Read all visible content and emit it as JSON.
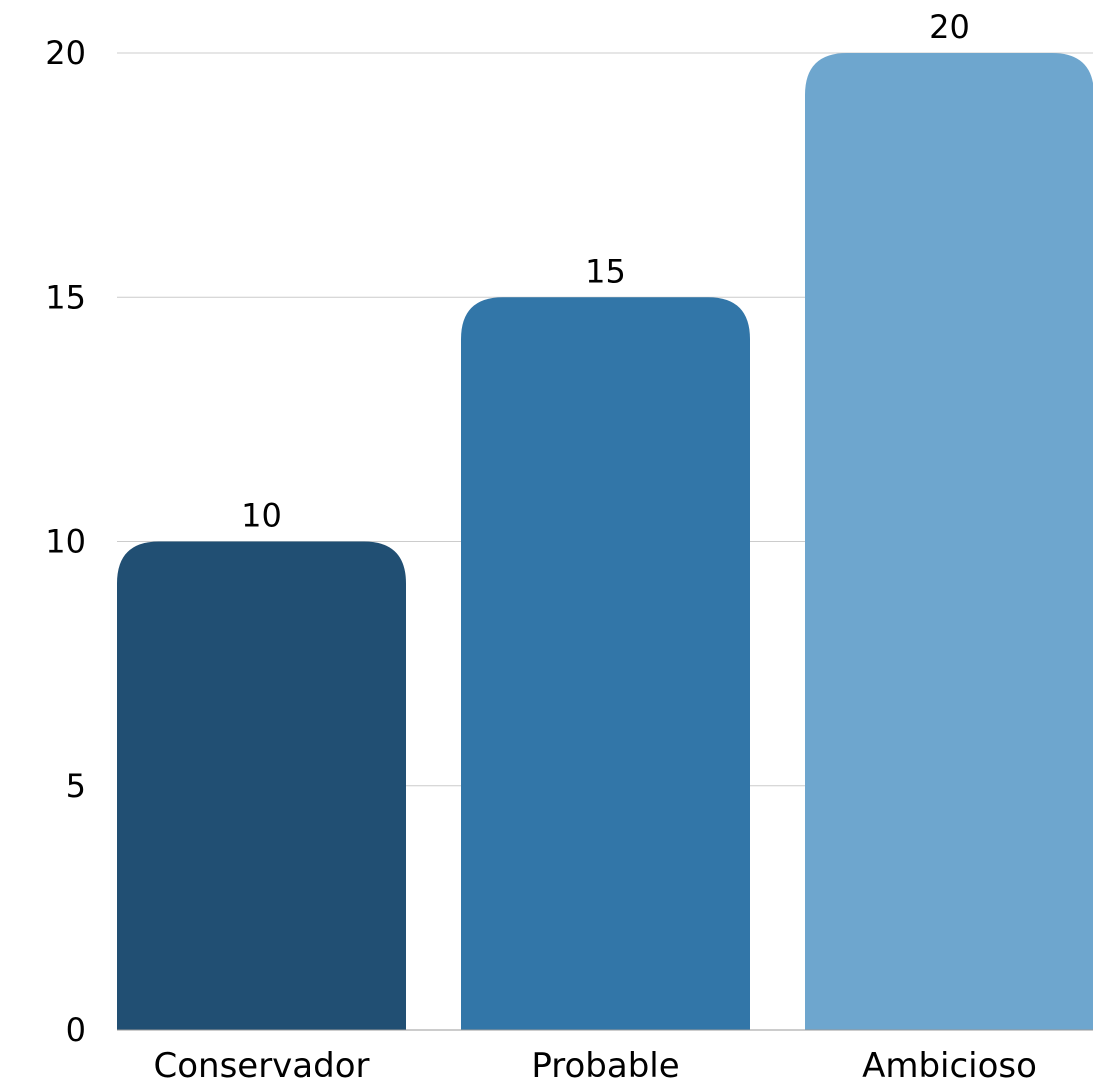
{
  "chart_data": {
    "type": "bar",
    "categories": [
      "Conservador",
      "Probable",
      "Ambicioso"
    ],
    "values": [
      10,
      15,
      20
    ],
    "data_labels": [
      "10",
      "15",
      "20"
    ],
    "y_ticks": [
      0,
      5,
      10,
      15,
      20
    ],
    "ylim": [
      0,
      20
    ],
    "grid": true,
    "title": "",
    "xlabel": "",
    "ylabel": "",
    "colors": [
      "#214f73",
      "#3276a8",
      "#6ea6ce"
    ]
  }
}
